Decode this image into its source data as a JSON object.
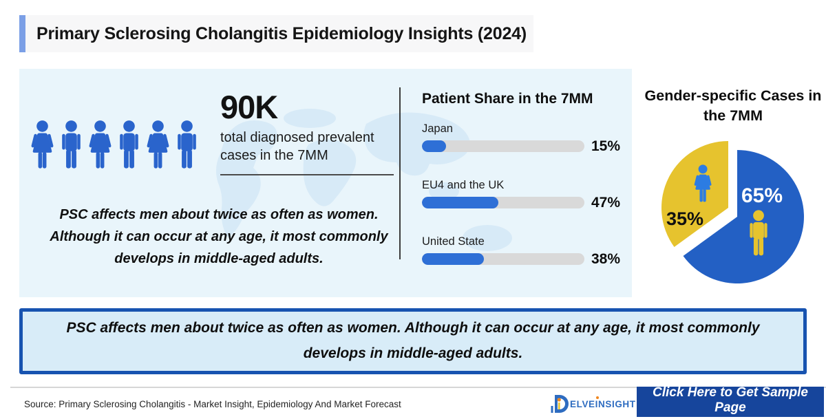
{
  "header": {
    "title": "Primary Sclerosing Cholangitis Epidemiology Insights (2024)"
  },
  "stats": {
    "people_icons": [
      "female",
      "male",
      "female",
      "male",
      "female",
      "male"
    ],
    "value": "90K",
    "label": "total diagnosed prevalent cases in the 7MM",
    "note": "PSC affects men about twice as often as women. Although it can occur at any age, it most commonly develops in middle-aged adults."
  },
  "patient_share": {
    "title": "Patient Share in the 7MM"
  },
  "gender": {
    "title": "Gender-specific Cases in the 7MM",
    "male_value": "65%",
    "female_value": "35%"
  },
  "banner": {
    "text": "PSC affects men about twice as often as women. Although it can occur at any age, it most commonly develops in middle-aged adults."
  },
  "footer": {
    "source": "Source: Primary Sclerosing Cholangitis - Market Insight, Epidemiology And Market Forecast",
    "logo": {
      "part1": "ELVE",
      "part2": "I",
      "part3": "NSIGHT"
    },
    "cta": "Click Here to Get Sample Page"
  },
  "colors": {
    "accent_blue": "#2a64cc",
    "bar_fill": "#2e6fd6",
    "bar_track": "#d9d9d9",
    "pie_male_blue": "#2360c4",
    "pie_female_yellow": "#e6c32e",
    "icon_female_on_yellow": "#2c7ce2",
    "icon_male_on_blue": "#e6c32e",
    "title_accent": "#7b9fe6",
    "panel_bg": "#e9f5fb",
    "banner_border": "#1753b0",
    "button_bg": "#16459c",
    "logo_blue": "#2e6cc0",
    "logo_orange": "#f0861e"
  },
  "chart_data": [
    {
      "type": "bar",
      "title": "Patient Share in the 7MM",
      "categories": [
        "Japan",
        "EU4 and the UK",
        "United State"
      ],
      "values": [
        15,
        47,
        38
      ],
      "value_labels": [
        "15%",
        "47%",
        "38%"
      ],
      "unit": "%",
      "orientation": "horizontal",
      "xlim": [
        0,
        100
      ],
      "grid": false,
      "legend": false
    },
    {
      "type": "pie",
      "title": "Gender-specific Cases in the 7MM",
      "labels": [
        "Male",
        "Female"
      ],
      "values": [
        65,
        35
      ],
      "value_labels": [
        "65%",
        "35%"
      ],
      "colors": [
        "#2360c4",
        "#e6c32e"
      ],
      "exploded_slice": "Female",
      "annotation": "90K total diagnosed prevalent cases in the 7MM"
    }
  ]
}
